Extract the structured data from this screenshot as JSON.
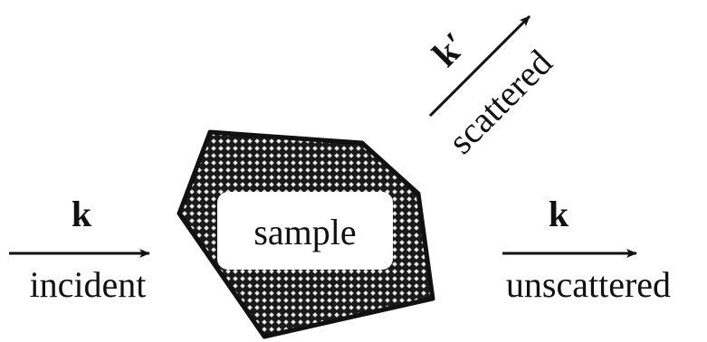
{
  "incident": {
    "symbol": "k",
    "label": "incident"
  },
  "sample": {
    "label": "sample"
  },
  "scattered": {
    "symbol": "k′",
    "label": "scattered"
  },
  "unscattered": {
    "symbol": "k",
    "label": "unscattered"
  }
}
